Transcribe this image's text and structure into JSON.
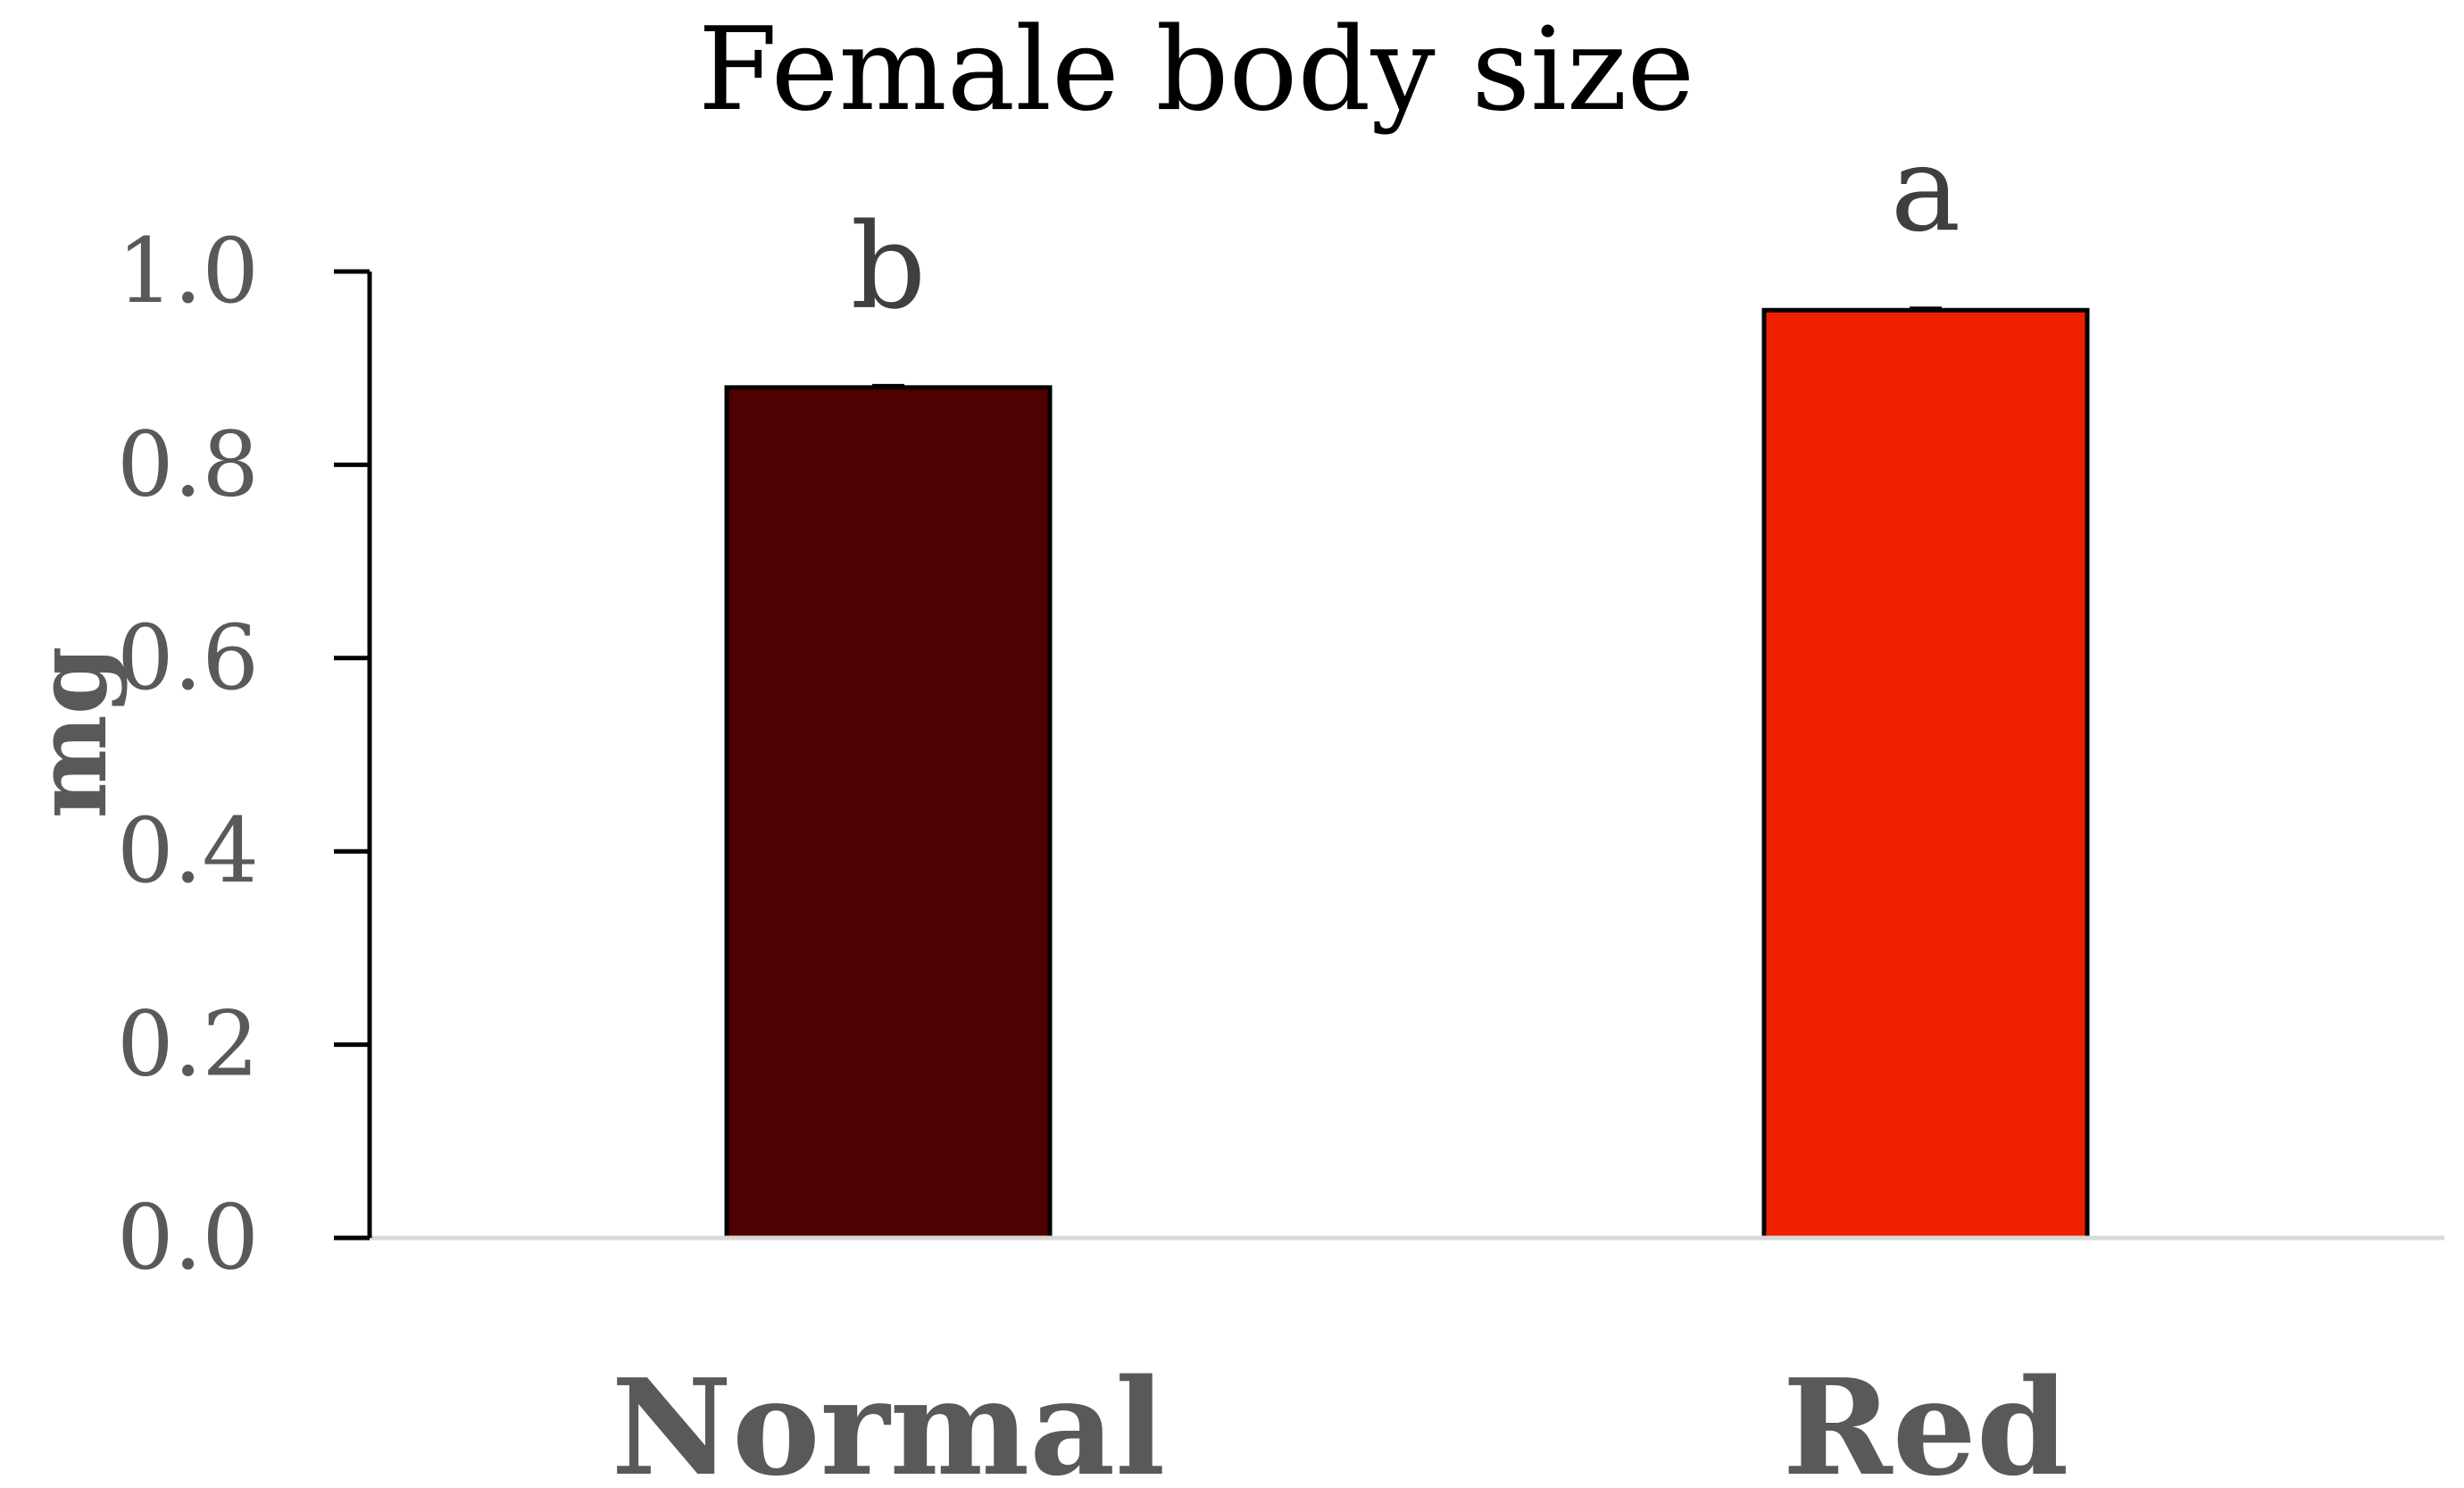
{
  "chart_data": {
    "type": "bar",
    "title": "Female body size",
    "xlabel": "",
    "ylabel": "mg",
    "categories": [
      "Normal",
      "Red"
    ],
    "values": [
      0.88,
      0.96
    ],
    "colors": [
      "#4f0000",
      "#ee2000"
    ],
    "significance_labels": [
      "b",
      "a"
    ],
    "ylim": [
      0.0,
      1.0
    ],
    "yticks": [
      "0.0",
      "0.2",
      "0.4",
      "0.6",
      "0.8",
      "1.0"
    ],
    "grid": false,
    "legend": "none"
  }
}
